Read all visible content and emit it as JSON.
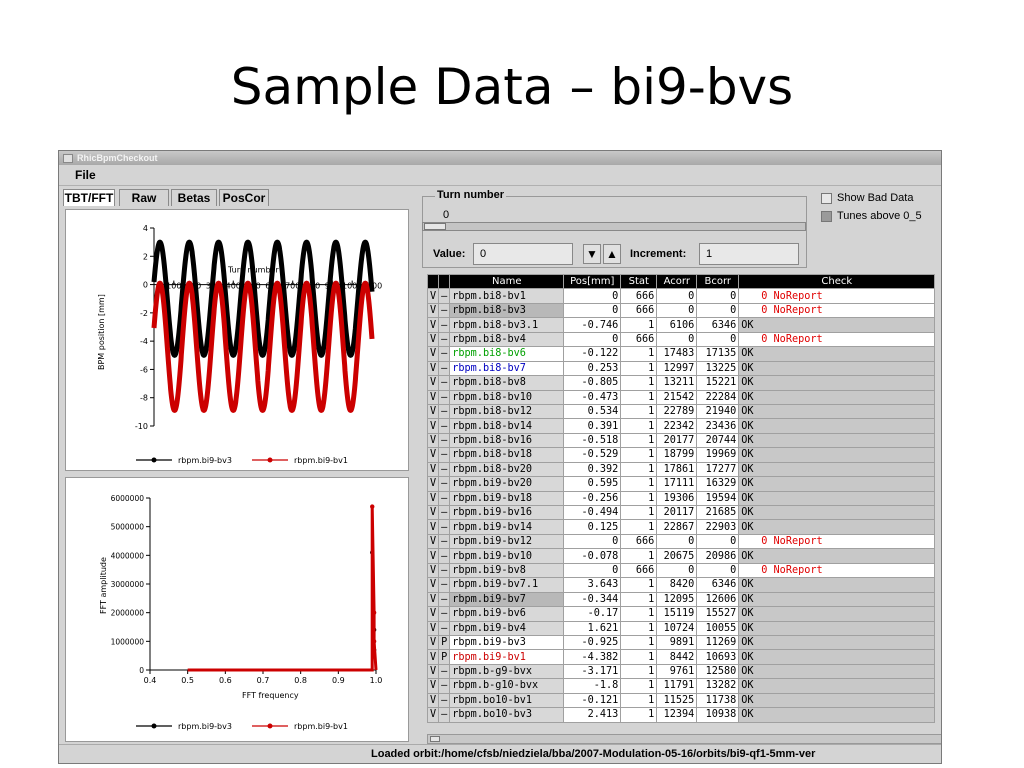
{
  "slide": {
    "title": "Sample Data – bi9-bvs"
  },
  "window": {
    "title": "RhicBpmCheckout",
    "menu_file": "File",
    "status": "Loaded orbit:/home/cfsb/niedziela/bba/2007-Modulation-05-16/orbits/bi9-qf1-5mm-ver"
  },
  "tabs": [
    "TBT/FFT",
    "Raw",
    "Betas",
    "PosCor"
  ],
  "controls": {
    "turn_label": "Turn number",
    "turn_value": "0",
    "value_label": "Value:",
    "value": "0",
    "increment_label": "Increment:",
    "increment": "1",
    "show_bad": "Show Bad Data",
    "tunes_above": "Tunes above 0_5"
  },
  "colors": {
    "black_series": "#000000",
    "red_series": "#cc0000",
    "noreport": "#e00000",
    "green_name": "#00a000",
    "blue_name": "#0000c0"
  },
  "chart_data": [
    {
      "type": "line",
      "title": "",
      "xlabel": "Turn number",
      "ylabel": "BPM position [mm]",
      "xlim": [
        0,
        1100
      ],
      "ylim": [
        -10,
        4
      ],
      "xticks": [
        100,
        200,
        300,
        400,
        500,
        600,
        700,
        800,
        900,
        1000,
        1100
      ],
      "xtick_labels": [
        "100",
        "200",
        "300",
        "400",
        "500",
        "600",
        "700",
        "800",
        "900",
        "1000",
        "1100"
      ],
      "yticks": [
        4,
        2,
        0,
        -2,
        -4,
        -6,
        -8,
        -10
      ],
      "series": [
        {
          "name": "rbpm.bi9-bv3",
          "color": "#000000",
          "mean": -1.0,
          "amplitude": 4.0,
          "period": 148,
          "phase": 0.3
        },
        {
          "name": "rbpm.bi9-bv1",
          "color": "#cc0000",
          "mean": -4.4,
          "amplitude": 4.5,
          "period": 148,
          "phase": 0.3
        }
      ]
    },
    {
      "type": "line",
      "title": "",
      "xlabel": "FFT frequency",
      "ylabel": "FFT amplitude",
      "xlim": [
        0.4,
        1.0
      ],
      "ylim": [
        0,
        6000000
      ],
      "xticks": [
        0.4,
        0.5,
        0.6,
        0.7,
        0.8,
        0.9,
        1.0
      ],
      "xtick_labels": [
        "0.4",
        "0.5",
        "0.6",
        "0.7",
        "0.8",
        "0.9",
        "1.0"
      ],
      "yticks": [
        0,
        1000000,
        2000000,
        3000000,
        4000000,
        5000000,
        6000000
      ],
      "series": [
        {
          "name": "rbpm.bi9-bv3",
          "color": "#000000",
          "x": [
            0.5,
            0.99,
            0.99,
            0.995,
            0.995,
            1.0
          ],
          "y": [
            0,
            0,
            4100000,
            1400000,
            700000,
            0
          ]
        },
        {
          "name": "rbpm.bi9-bv1",
          "color": "#cc0000",
          "x": [
            0.5,
            0.99,
            0.99,
            0.995,
            0.995,
            1.0
          ],
          "y": [
            0,
            0,
            5700000,
            2000000,
            1000000,
            0
          ]
        }
      ]
    }
  ],
  "table": {
    "headers": [
      "Name",
      "Pos[mm]",
      "Stat",
      "Acorr",
      "Bcorr",
      "Check"
    ],
    "rows": [
      {
        "v": "V",
        "d": "–",
        "name": "rbpm.bi8-bv1",
        "pos": "0",
        "stat": "666",
        "a": "0",
        "b": "0",
        "check": "0 NoReport",
        "bad": true,
        "nameColor": "",
        "shade": "#d8d8d8"
      },
      {
        "v": "V",
        "d": "–",
        "name": "rbpm.bi8-bv3",
        "pos": "0",
        "stat": "666",
        "a": "0",
        "b": "0",
        "check": "0 NoReport",
        "bad": true,
        "nameColor": "",
        "shade": "#b8b8b8"
      },
      {
        "v": "V",
        "d": "–",
        "name": "rbpm.bi8-bv3.1",
        "pos": "-0.746",
        "stat": "1",
        "a": "6106",
        "b": "6346",
        "check": "OK",
        "bad": false,
        "nameColor": "",
        "shade": "#d8d8d8"
      },
      {
        "v": "V",
        "d": "–",
        "name": "rbpm.bi8-bv4",
        "pos": "0",
        "stat": "666",
        "a": "0",
        "b": "0",
        "check": "0 NoReport",
        "bad": true,
        "nameColor": "",
        "shade": "#d8d8d8"
      },
      {
        "v": "V",
        "d": "–",
        "name": "rbpm.bi8-bv6",
        "pos": "-0.122",
        "stat": "1",
        "a": "17483",
        "b": "17135",
        "check": "OK",
        "bad": false,
        "nameColor": "#00a000",
        "shade": "#ffffff"
      },
      {
        "v": "V",
        "d": "–",
        "name": "rbpm.bi8-bv7",
        "pos": "0.253",
        "stat": "1",
        "a": "12997",
        "b": "13225",
        "check": "OK",
        "bad": false,
        "nameColor": "#0000c0",
        "shade": "#ffffff"
      },
      {
        "v": "V",
        "d": "–",
        "name": "rbpm.bi8-bv8",
        "pos": "-0.805",
        "stat": "1",
        "a": "13211",
        "b": "15221",
        "check": "OK",
        "bad": false,
        "nameColor": "",
        "shade": "#d8d8d8"
      },
      {
        "v": "V",
        "d": "–",
        "name": "rbpm.bi8-bv10",
        "pos": "-0.473",
        "stat": "1",
        "a": "21542",
        "b": "22284",
        "check": "OK",
        "bad": false,
        "nameColor": "",
        "shade": "#d8d8d8"
      },
      {
        "v": "V",
        "d": "–",
        "name": "rbpm.bi8-bv12",
        "pos": "0.534",
        "stat": "1",
        "a": "22789",
        "b": "21940",
        "check": "OK",
        "bad": false,
        "nameColor": "",
        "shade": "#d8d8d8"
      },
      {
        "v": "V",
        "d": "–",
        "name": "rbpm.bi8-bv14",
        "pos": "0.391",
        "stat": "1",
        "a": "22342",
        "b": "23436",
        "check": "OK",
        "bad": false,
        "nameColor": "",
        "shade": "#d8d8d8"
      },
      {
        "v": "V",
        "d": "–",
        "name": "rbpm.bi8-bv16",
        "pos": "-0.518",
        "stat": "1",
        "a": "20177",
        "b": "20744",
        "check": "OK",
        "bad": false,
        "nameColor": "",
        "shade": "#d8d8d8"
      },
      {
        "v": "V",
        "d": "–",
        "name": "rbpm.bi8-bv18",
        "pos": "-0.529",
        "stat": "1",
        "a": "18799",
        "b": "19969",
        "check": "OK",
        "bad": false,
        "nameColor": "",
        "shade": "#d8d8d8"
      },
      {
        "v": "V",
        "d": "–",
        "name": "rbpm.bi8-bv20",
        "pos": "0.392",
        "stat": "1",
        "a": "17861",
        "b": "17277",
        "check": "OK",
        "bad": false,
        "nameColor": "",
        "shade": "#d8d8d8"
      },
      {
        "v": "V",
        "d": "–",
        "name": "rbpm.bi9-bv20",
        "pos": "0.595",
        "stat": "1",
        "a": "17111",
        "b": "16329",
        "check": "OK",
        "bad": false,
        "nameColor": "",
        "shade": "#d8d8d8"
      },
      {
        "v": "V",
        "d": "–",
        "name": "rbpm.bi9-bv18",
        "pos": "-0.256",
        "stat": "1",
        "a": "19306",
        "b": "19594",
        "check": "OK",
        "bad": false,
        "nameColor": "",
        "shade": "#d8d8d8"
      },
      {
        "v": "V",
        "d": "–",
        "name": "rbpm.bi9-bv16",
        "pos": "-0.494",
        "stat": "1",
        "a": "20117",
        "b": "21685",
        "check": "OK",
        "bad": false,
        "nameColor": "",
        "shade": "#d8d8d8"
      },
      {
        "v": "V",
        "d": "–",
        "name": "rbpm.bi9-bv14",
        "pos": "0.125",
        "stat": "1",
        "a": "22867",
        "b": "22903",
        "check": "OK",
        "bad": false,
        "nameColor": "",
        "shade": "#d8d8d8"
      },
      {
        "v": "V",
        "d": "–",
        "name": "rbpm.bi9-bv12",
        "pos": "0",
        "stat": "666",
        "a": "0",
        "b": "0",
        "check": "0 NoReport",
        "bad": true,
        "nameColor": "",
        "shade": "#d8d8d8"
      },
      {
        "v": "V",
        "d": "–",
        "name": "rbpm.bi9-bv10",
        "pos": "-0.078",
        "stat": "1",
        "a": "20675",
        "b": "20986",
        "check": "OK",
        "bad": false,
        "nameColor": "",
        "shade": "#d8d8d8"
      },
      {
        "v": "V",
        "d": "–",
        "name": "rbpm.bi9-bv8",
        "pos": "0",
        "stat": "666",
        "a": "0",
        "b": "0",
        "check": "0 NoReport",
        "bad": true,
        "nameColor": "",
        "shade": "#d8d8d8"
      },
      {
        "v": "V",
        "d": "–",
        "name": "rbpm.bi9-bv7.1",
        "pos": "3.643",
        "stat": "1",
        "a": "8420",
        "b": "6346",
        "check": "OK",
        "bad": false,
        "nameColor": "",
        "shade": "#d8d8d8"
      },
      {
        "v": "V",
        "d": "–",
        "name": "rbpm.bi9-bv7",
        "pos": "-0.344",
        "stat": "1",
        "a": "12095",
        "b": "12606",
        "check": "OK",
        "bad": false,
        "nameColor": "",
        "shade": "#b8b8b8"
      },
      {
        "v": "V",
        "d": "–",
        "name": "rbpm.bi9-bv6",
        "pos": "-0.17",
        "stat": "1",
        "a": "15119",
        "b": "15527",
        "check": "OK",
        "bad": false,
        "nameColor": "",
        "shade": "#d8d8d8"
      },
      {
        "v": "V",
        "d": "–",
        "name": "rbpm.bi9-bv4",
        "pos": "1.621",
        "stat": "1",
        "a": "10724",
        "b": "10055",
        "check": "OK",
        "bad": false,
        "nameColor": "",
        "shade": "#d8d8d8"
      },
      {
        "v": "V",
        "d": "P",
        "name": "rbpm.bi9-bv3",
        "pos": "-0.925",
        "stat": "1",
        "a": "9891",
        "b": "11269",
        "check": "OK",
        "bad": false,
        "nameColor": "",
        "shade": "#ffffff"
      },
      {
        "v": "V",
        "d": "P",
        "name": "rbpm.bi9-bv1",
        "pos": "-4.382",
        "stat": "1",
        "a": "8442",
        "b": "10693",
        "check": "OK",
        "bad": false,
        "nameColor": "#cc0000",
        "shade": "#ffffff"
      },
      {
        "v": "V",
        "d": "–",
        "name": "rbpm.b-g9-bvx",
        "pos": "-3.171",
        "stat": "1",
        "a": "9761",
        "b": "12580",
        "check": "OK",
        "bad": false,
        "nameColor": "",
        "shade": "#d8d8d8"
      },
      {
        "v": "V",
        "d": "–",
        "name": "rbpm.b-g10-bvx",
        "pos": "-1.8",
        "stat": "1",
        "a": "11791",
        "b": "13282",
        "check": "OK",
        "bad": false,
        "nameColor": "",
        "shade": "#d8d8d8"
      },
      {
        "v": "V",
        "d": "–",
        "name": "rbpm.bo10-bv1",
        "pos": "-0.121",
        "stat": "1",
        "a": "11525",
        "b": "11738",
        "check": "OK",
        "bad": false,
        "nameColor": "",
        "shade": "#d8d8d8"
      },
      {
        "v": "V",
        "d": "–",
        "name": "rbpm.bo10-bv3",
        "pos": "2.413",
        "stat": "1",
        "a": "12394",
        "b": "10938",
        "check": "OK",
        "bad": false,
        "nameColor": "",
        "shade": "#d8d8d8"
      }
    ]
  }
}
